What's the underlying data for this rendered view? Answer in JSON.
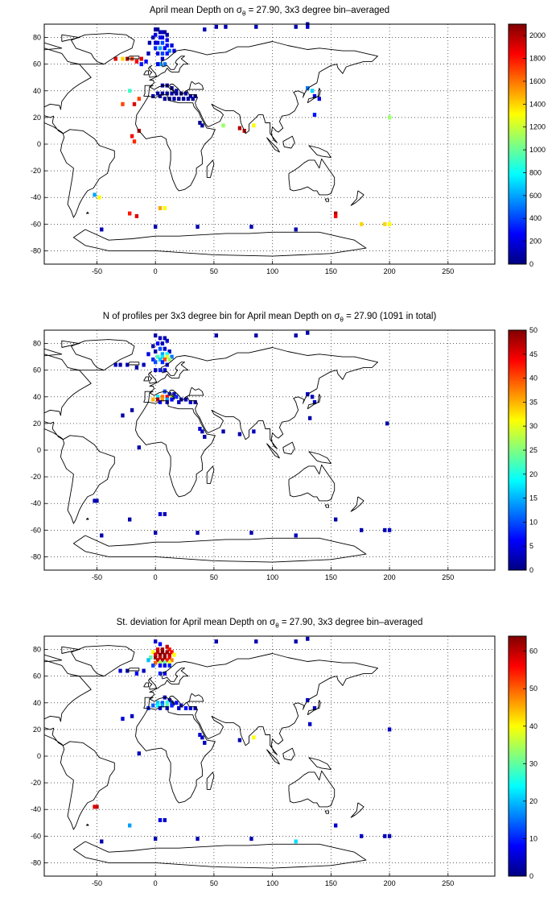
{
  "colors": {
    "coastline": "#000000",
    "grid": "#000000",
    "background": "#ffffff",
    "colormap": "jet"
  },
  "axes": {
    "xticks": [
      "-50",
      "0",
      "50",
      "100",
      "150",
      "200",
      "250"
    ],
    "yticks": [
      "80",
      "60",
      "40",
      "20",
      "0",
      "-20",
      "-40",
      "-60",
      "-80"
    ]
  },
  "chart_data": [
    {
      "type": "heatmap",
      "title": {
        "prefix": "April mean Depth on σ",
        "subscript": "θ",
        "suffix": " = 27.90, 3x3 degree bin–averaged"
      },
      "xlim": [
        -95,
        290
      ],
      "ylim": [
        -90,
        90
      ],
      "grid": true,
      "bin_size_deg": 3,
      "colorbar": {
        "range": [
          0,
          2100
        ],
        "ticks": [
          "2000",
          "1800",
          "1600",
          "1400",
          "1200",
          "1000",
          "800",
          "600",
          "400",
          "200",
          "0"
        ]
      },
      "bins": [
        [
          0,
          86,
          50
        ],
        [
          2,
          86,
          40
        ],
        [
          4,
          84,
          80
        ],
        [
          6,
          84,
          150
        ],
        [
          8,
          84,
          60
        ],
        [
          10,
          82,
          90
        ],
        [
          0,
          82,
          200
        ],
        [
          -2,
          80,
          120
        ],
        [
          4,
          80,
          300
        ],
        [
          6,
          80,
          180
        ],
        [
          10,
          78,
          250
        ],
        [
          -5,
          76,
          100
        ],
        [
          0,
          76,
          150
        ],
        [
          2,
          76,
          220
        ],
        [
          6,
          76,
          400
        ],
        [
          10,
          74,
          300
        ],
        [
          14,
          74,
          200
        ],
        [
          0,
          72,
          350
        ],
        [
          4,
          72,
          600
        ],
        [
          8,
          72,
          250
        ],
        [
          12,
          70,
          500
        ],
        [
          16,
          70,
          200
        ],
        [
          2,
          68,
          200
        ],
        [
          6,
          68,
          400
        ],
        [
          10,
          68,
          300
        ],
        [
          -6,
          68,
          100
        ],
        [
          -12,
          64,
          1900
        ],
        [
          -16,
          62,
          1850
        ],
        [
          -20,
          64,
          1700
        ],
        [
          -24,
          64,
          2000
        ],
        [
          -28,
          64,
          1400
        ],
        [
          -34,
          64,
          1900
        ],
        [
          -12,
          60,
          300
        ],
        [
          -8,
          62,
          250
        ],
        [
          6,
          64,
          150
        ],
        [
          4,
          60,
          600
        ],
        [
          8,
          60,
          500
        ],
        [
          2,
          60,
          200
        ],
        [
          130,
          90,
          100
        ],
        [
          130,
          88,
          150
        ],
        [
          52,
          88,
          100
        ],
        [
          60,
          88,
          100
        ],
        [
          120,
          88,
          100
        ],
        [
          86,
          88,
          100
        ],
        [
          42,
          86,
          100
        ],
        [
          6,
          44,
          60
        ],
        [
          10,
          44,
          40
        ],
        [
          14,
          42,
          50
        ],
        [
          18,
          40,
          80
        ],
        [
          2,
          38,
          60
        ],
        [
          6,
          38,
          40
        ],
        [
          10,
          38,
          50
        ],
        [
          14,
          38,
          70
        ],
        [
          18,
          38,
          40
        ],
        [
          22,
          38,
          30
        ],
        [
          26,
          38,
          50
        ],
        [
          30,
          36,
          60
        ],
        [
          34,
          36,
          40
        ],
        [
          -2,
          36,
          80
        ],
        [
          4,
          36,
          60
        ],
        [
          8,
          34,
          50
        ],
        [
          12,
          34,
          40
        ],
        [
          16,
          34,
          60
        ],
        [
          20,
          34,
          50
        ],
        [
          24,
          34,
          40
        ],
        [
          28,
          34,
          50
        ],
        [
          32,
          34,
          60
        ],
        [
          38,
          16,
          40
        ],
        [
          40,
          14,
          50
        ],
        [
          -14,
          34,
          1700
        ],
        [
          -18,
          30,
          1900
        ],
        [
          130,
          42,
          500
        ],
        [
          134,
          40,
          700
        ],
        [
          136,
          36,
          200
        ],
        [
          140,
          34,
          200
        ],
        [
          136,
          22,
          300
        ],
        [
          -22,
          40,
          900
        ],
        [
          -28,
          30,
          1700
        ],
        [
          -14,
          10,
          1950
        ],
        [
          -20,
          6,
          1850
        ],
        [
          -18,
          2,
          1750
        ],
        [
          72,
          12,
          2000
        ],
        [
          76,
          10,
          1950
        ],
        [
          58,
          14,
          1100
        ],
        [
          84,
          14,
          1300
        ],
        [
          200,
          20,
          1100
        ],
        [
          -52,
          -38,
          600
        ],
        [
          -48,
          -40,
          1300
        ],
        [
          -22,
          -52,
          1800
        ],
        [
          -16,
          -54,
          1900
        ],
        [
          4,
          -48,
          1500
        ],
        [
          8,
          -48,
          1300
        ],
        [
          154,
          -52,
          2000
        ],
        [
          154,
          -54,
          1850
        ],
        [
          176,
          -60,
          1400
        ],
        [
          196,
          -60,
          1400
        ],
        [
          200,
          -60,
          1300
        ],
        [
          -46,
          -64,
          100
        ],
        [
          0,
          -62,
          100
        ],
        [
          36,
          -62,
          100
        ],
        [
          82,
          -62,
          100
        ],
        [
          120,
          -64,
          100
        ]
      ]
    },
    {
      "type": "heatmap",
      "title": {
        "prefix": "N of profiles per 3x3 degree bin for April mean Depth on σ",
        "subscript": "θ",
        "suffix": " = 27.90 (1091 in total)"
      },
      "xlim": [
        -95,
        290
      ],
      "ylim": [
        -90,
        90
      ],
      "grid": true,
      "bin_size_deg": 3,
      "colorbar": {
        "range": [
          0,
          50
        ],
        "ticks": [
          "50",
          "45",
          "40",
          "35",
          "30",
          "25",
          "20",
          "15",
          "10",
          "5",
          "0"
        ]
      },
      "bins": [
        [
          0,
          86,
          2
        ],
        [
          4,
          84,
          3
        ],
        [
          8,
          84,
          2
        ],
        [
          10,
          82,
          4
        ],
        [
          2,
          80,
          6
        ],
        [
          6,
          80,
          3
        ],
        [
          -2,
          78,
          2
        ],
        [
          4,
          76,
          10
        ],
        [
          8,
          76,
          4
        ],
        [
          12,
          74,
          3
        ],
        [
          0,
          74,
          2
        ],
        [
          6,
          72,
          14
        ],
        [
          10,
          72,
          20
        ],
        [
          -6,
          72,
          5
        ],
        [
          2,
          70,
          22
        ],
        [
          6,
          70,
          18
        ],
        [
          10,
          70,
          30
        ],
        [
          14,
          70,
          12
        ],
        [
          -2,
          68,
          8
        ],
        [
          4,
          68,
          16
        ],
        [
          8,
          68,
          40
        ],
        [
          12,
          68,
          26
        ],
        [
          0,
          66,
          10
        ],
        [
          6,
          66,
          8
        ],
        [
          10,
          64,
          5
        ],
        [
          -10,
          64,
          3
        ],
        [
          -16,
          62,
          2
        ],
        [
          -24,
          64,
          4
        ],
        [
          -30,
          64,
          2
        ],
        [
          -34,
          64,
          3
        ],
        [
          4,
          60,
          8
        ],
        [
          8,
          60,
          4
        ],
        [
          0,
          60,
          3
        ],
        [
          130,
          88,
          2
        ],
        [
          52,
          86,
          2
        ],
        [
          86,
          86,
          2
        ],
        [
          120,
          86,
          2
        ],
        [
          8,
          44,
          10
        ],
        [
          12,
          42,
          8
        ],
        [
          16,
          42,
          3
        ],
        [
          2,
          40,
          18
        ],
        [
          6,
          40,
          38
        ],
        [
          10,
          40,
          44
        ],
        [
          14,
          40,
          28
        ],
        [
          18,
          40,
          8
        ],
        [
          22,
          38,
          3
        ],
        [
          -2,
          38,
          35
        ],
        [
          2,
          38,
          48
        ],
        [
          6,
          38,
          36
        ],
        [
          10,
          38,
          14
        ],
        [
          14,
          38,
          6
        ],
        [
          26,
          38,
          2
        ],
        [
          30,
          36,
          4
        ],
        [
          4,
          36,
          6
        ],
        [
          10,
          36,
          4
        ],
        [
          20,
          36,
          3
        ],
        [
          34,
          36,
          2
        ],
        [
          -20,
          30,
          2
        ],
        [
          -28,
          26,
          2
        ],
        [
          38,
          16,
          4
        ],
        [
          40,
          14,
          3
        ],
        [
          42,
          10,
          2
        ],
        [
          130,
          42,
          4
        ],
        [
          134,
          40,
          3
        ],
        [
          136,
          36,
          3
        ],
        [
          132,
          24,
          2
        ],
        [
          72,
          12,
          2
        ],
        [
          58,
          14,
          2
        ],
        [
          84,
          14,
          3
        ],
        [
          198,
          20,
          2
        ],
        [
          -14,
          2,
          2
        ],
        [
          -52,
          -38,
          3
        ],
        [
          -50,
          -38,
          2
        ],
        [
          -22,
          -52,
          2
        ],
        [
          4,
          -48,
          4
        ],
        [
          8,
          -48,
          3
        ],
        [
          154,
          -52,
          2
        ],
        [
          176,
          -60,
          2
        ],
        [
          196,
          -60,
          3
        ],
        [
          200,
          -60,
          3
        ],
        [
          -46,
          -64,
          2
        ],
        [
          0,
          -62,
          2
        ],
        [
          36,
          -62,
          2
        ],
        [
          82,
          -62,
          2
        ],
        [
          120,
          -64,
          3
        ]
      ]
    },
    {
      "type": "heatmap",
      "title": {
        "prefix": "St. deviation for April mean Depth on σ",
        "subscript": "θ",
        "suffix": " = 27.90, 3x3 degree bin–averaged"
      },
      "xlim": [
        -95,
        290
      ],
      "ylim": [
        -90,
        90
      ],
      "grid": true,
      "bin_size_deg": 3,
      "colorbar": {
        "range": [
          0,
          64
        ],
        "ticks": [
          "60",
          "50",
          "40",
          "30",
          "20",
          "10",
          "0"
        ]
      },
      "bins": [
        [
          0,
          86,
          5
        ],
        [
          4,
          84,
          8
        ],
        [
          10,
          82,
          60
        ],
        [
          2,
          80,
          58
        ],
        [
          6,
          80,
          62
        ],
        [
          12,
          80,
          55
        ],
        [
          -2,
          78,
          40
        ],
        [
          2,
          78,
          60
        ],
        [
          6,
          78,
          64
        ],
        [
          10,
          78,
          62
        ],
        [
          14,
          78,
          56
        ],
        [
          0,
          76,
          58
        ],
        [
          4,
          76,
          64
        ],
        [
          8,
          76,
          62
        ],
        [
          12,
          76,
          60
        ],
        [
          16,
          76,
          40
        ],
        [
          -4,
          74,
          30
        ],
        [
          0,
          74,
          62
        ],
        [
          4,
          74,
          60
        ],
        [
          8,
          74,
          63
        ],
        [
          12,
          74,
          58
        ],
        [
          -6,
          72,
          20
        ],
        [
          2,
          72,
          60
        ],
        [
          6,
          72,
          62
        ],
        [
          10,
          72,
          55
        ],
        [
          14,
          72,
          48
        ],
        [
          0,
          70,
          50
        ],
        [
          4,
          70,
          35
        ],
        [
          8,
          70,
          30
        ],
        [
          12,
          70,
          40
        ],
        [
          -2,
          68,
          12
        ],
        [
          4,
          68,
          8
        ],
        [
          8,
          68,
          6
        ],
        [
          12,
          68,
          10
        ],
        [
          -10,
          64,
          4
        ],
        [
          -16,
          62,
          8
        ],
        [
          -24,
          64,
          3
        ],
        [
          -30,
          64,
          5
        ],
        [
          4,
          62,
          10
        ],
        [
          8,
          62,
          6
        ],
        [
          130,
          88,
          3
        ],
        [
          52,
          86,
          3
        ],
        [
          120,
          86,
          3
        ],
        [
          86,
          86,
          3
        ],
        [
          8,
          44,
          4
        ],
        [
          12,
          42,
          6
        ],
        [
          2,
          40,
          20
        ],
        [
          6,
          40,
          14
        ],
        [
          10,
          40,
          26
        ],
        [
          14,
          40,
          12
        ],
        [
          18,
          40,
          8
        ],
        [
          -2,
          38,
          14
        ],
        [
          2,
          38,
          24
        ],
        [
          6,
          38,
          18
        ],
        [
          10,
          38,
          30
        ],
        [
          14,
          38,
          10
        ],
        [
          22,
          38,
          6
        ],
        [
          26,
          36,
          8
        ],
        [
          30,
          36,
          6
        ],
        [
          -6,
          36,
          10
        ],
        [
          4,
          36,
          4
        ],
        [
          10,
          36,
          6
        ],
        [
          20,
          36,
          4
        ],
        [
          34,
          36,
          3
        ],
        [
          -20,
          30,
          4
        ],
        [
          -28,
          28,
          6
        ],
        [
          38,
          16,
          5
        ],
        [
          40,
          14,
          4
        ],
        [
          42,
          10,
          4
        ],
        [
          130,
          42,
          5
        ],
        [
          136,
          36,
          4
        ],
        [
          132,
          24,
          4
        ],
        [
          72,
          12,
          3
        ],
        [
          84,
          14,
          40
        ],
        [
          200,
          20,
          4
        ],
        [
          -14,
          2,
          4
        ],
        [
          -50,
          -38,
          60
        ],
        [
          -52,
          -38,
          58
        ],
        [
          -22,
          -52,
          18
        ],
        [
          4,
          -48,
          6
        ],
        [
          8,
          -48,
          5
        ],
        [
          154,
          -52,
          5
        ],
        [
          176,
          -60,
          4
        ],
        [
          196,
          -60,
          4
        ],
        [
          200,
          -60,
          3
        ],
        [
          -46,
          -64,
          3
        ],
        [
          0,
          -62,
          3
        ],
        [
          36,
          -62,
          3
        ],
        [
          82,
          -62,
          3
        ],
        [
          120,
          -64,
          22
        ]
      ]
    }
  ]
}
